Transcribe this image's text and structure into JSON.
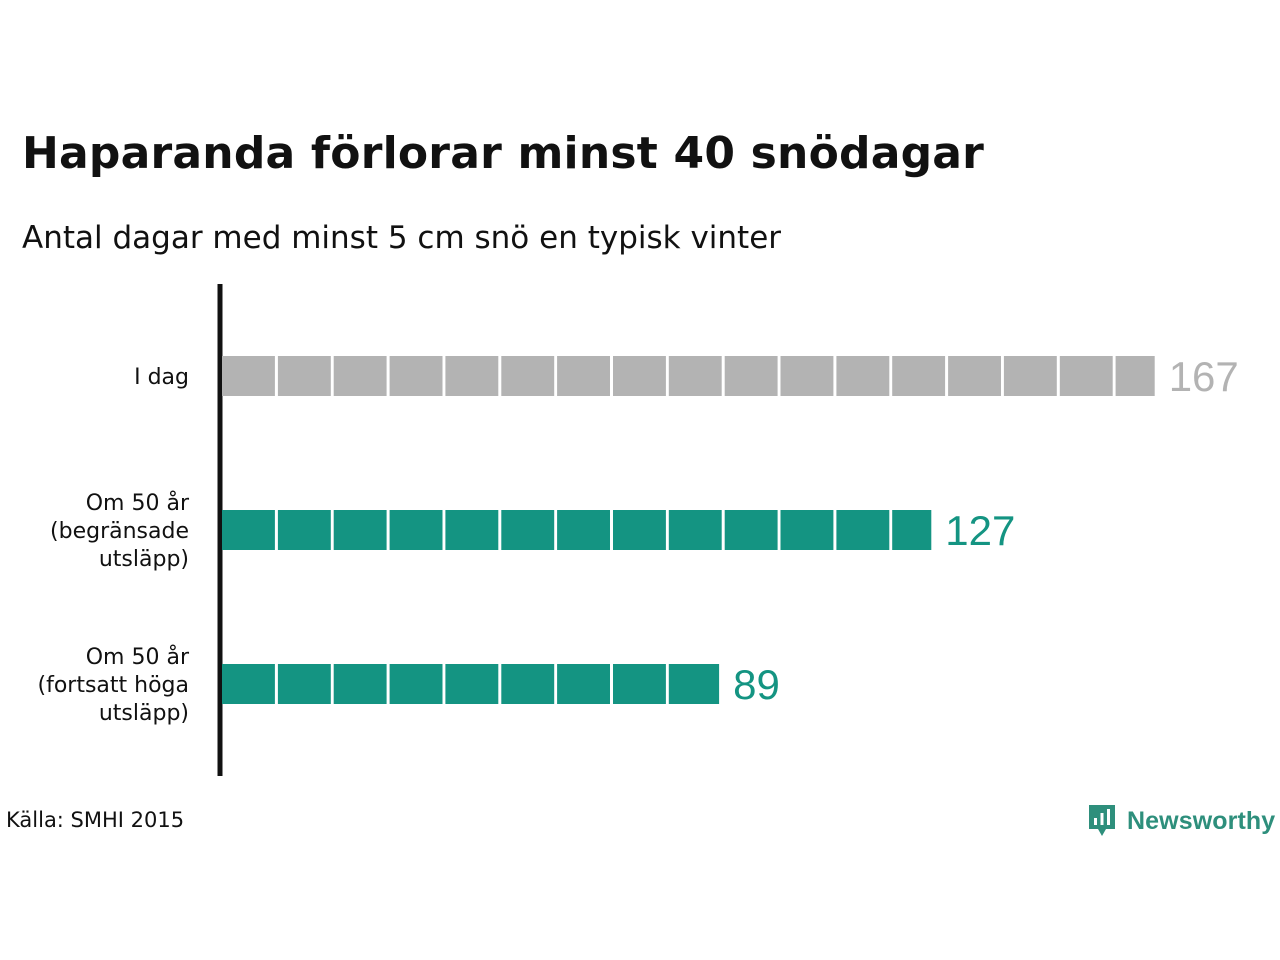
{
  "title": "Haparanda förlorar minst 40 snödagar",
  "subtitle": "Antal dagar med minst 5 cm snö en typisk vinter",
  "source": "Källa: SMHI 2015",
  "brand": {
    "name": "Newsworthy",
    "icon": "newsworthy-logo-icon",
    "color": "#2e8f7c"
  },
  "chart_data": {
    "type": "bar",
    "orientation": "horizontal",
    "units_per_block": 10,
    "categories": [
      [
        "I dag"
      ],
      [
        "Om 50 år",
        "(begränsade",
        "utsläpp)"
      ],
      [
        "Om 50 år",
        "(fortsatt höga",
        "utsläpp)"
      ]
    ],
    "values": [
      167,
      127,
      89
    ],
    "colors": [
      "#b3b3b3",
      "#149482",
      "#149482"
    ],
    "value_label_colors": [
      "#b3b3b3",
      "#149482",
      "#149482"
    ],
    "grid": false,
    "legend": "none"
  }
}
